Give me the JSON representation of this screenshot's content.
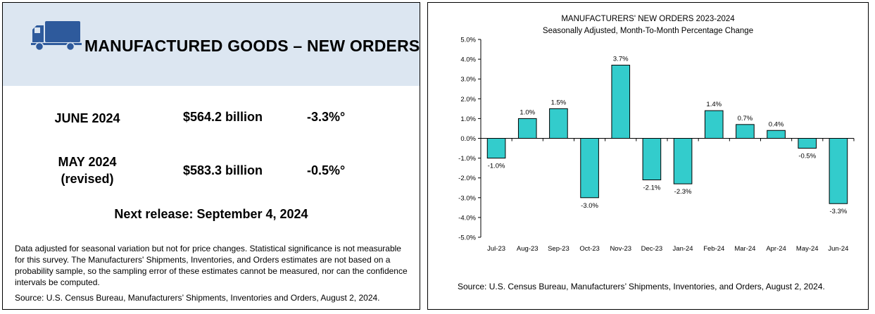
{
  "left_panel": {
    "title": "MANUFACTURED GOODS – NEW ORDERS",
    "icon": "truck-icon",
    "stats": [
      {
        "label": "JUNE 2024",
        "value": "$564.2 billion",
        "change": "-3.3%°"
      },
      {
        "label_line1": "MAY 2024",
        "label_line2": "(revised)",
        "value": "$583.3 billion",
        "change": "-0.5%°"
      }
    ],
    "next_release": "Next release: September 4, 2024",
    "footnote": "Data adjusted for seasonal variation but not for price changes. Statistical significance is not measurable for this survey.  The Manufacturers' Shipments, Inventories, and Orders estimates are not based on a probability sample, so the sampling error of these estimates cannot be measured, nor can the confidence intervals be computed.",
    "source": "Source: U.S. Census Bureau, Manufacturers’ Shipments, Inventories and Orders, August 2, 2024.",
    "colors": {
      "header_bg": "#dce6f1",
      "truck": "#2e5a9c"
    }
  },
  "right_panel": {
    "source": "Source: U.S. Census Bureau, Manufacturers’ Shipments, Inventories, and Orders, August 2, 2024."
  },
  "chart_data": {
    "type": "bar",
    "title": "MANUFACTURERS' NEW ORDERS 2023-2024",
    "subtitle": "Seasonally Adjusted,  Month-To-Month Percentage Change",
    "categories": [
      "Jul-23",
      "Aug-23",
      "Sep-23",
      "Oct-23",
      "Nov-23",
      "Dec-23",
      "Jan-24",
      "Feb-24",
      "Mar-24",
      "Apr-24",
      "May-24",
      "Jun-24"
    ],
    "values": [
      -1.0,
      1.0,
      1.5,
      -3.0,
      3.7,
      -2.1,
      -2.3,
      1.4,
      0.7,
      0.4,
      -0.5,
      -3.3
    ],
    "data_labels": [
      "-1.0%",
      "1.0%",
      "1.5%",
      "-3.0%",
      "3.7%",
      "-2.1%",
      "-2.3%",
      "1.4%",
      "0.7%",
      "0.4%",
      "-0.5%",
      "-3.3%"
    ],
    "ylim": [
      -5.0,
      5.0
    ],
    "yticks": [
      5.0,
      4.0,
      3.0,
      2.0,
      1.0,
      0.0,
      -1.0,
      -2.0,
      -3.0,
      -4.0,
      -5.0
    ],
    "ytick_labels": [
      "5.0%",
      "4.0%",
      "3.0%",
      "2.0%",
      "1.0%",
      "0.0%",
      "-1.0%",
      "-2.0%",
      "-3.0%",
      "-4.0%",
      "-5.0%"
    ],
    "xlabel": "",
    "ylabel": "",
    "grid": false,
    "legend": "none",
    "bar_color": "#33cccc"
  }
}
